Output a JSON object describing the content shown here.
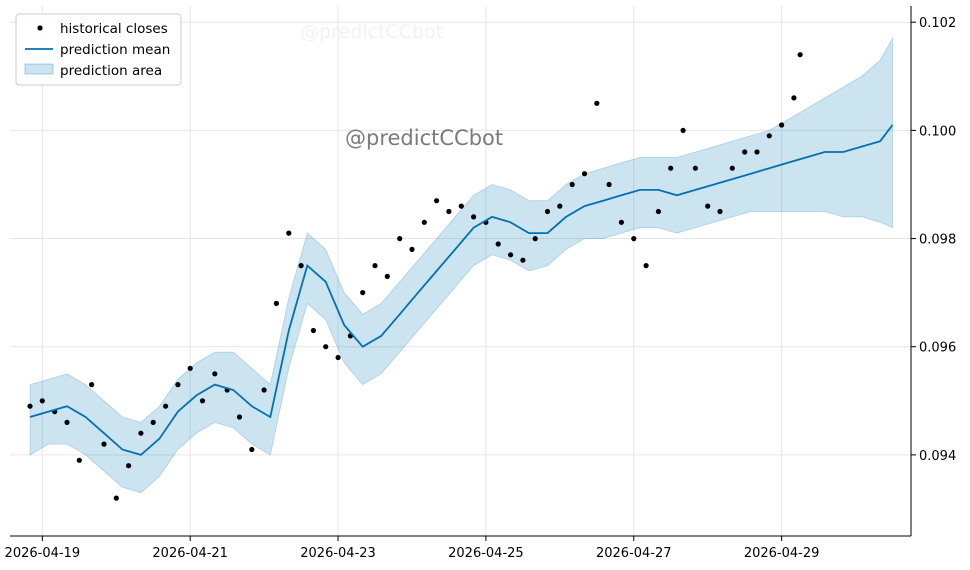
{
  "watermark": "@predictCCbot",
  "chart_data": {
    "type": "scatter+line+area",
    "x_ticks": [
      "2026-04-19",
      "2026-04-21",
      "2026-04-23",
      "2026-04-25",
      "2026-04-27",
      "2026-04-29"
    ],
    "y_ticks": [
      "0.094",
      "0.096",
      "0.098",
      "0.100",
      "0.102"
    ],
    "xlim": [
      "2026-04-18T13:30",
      "2026-04-30T18:00"
    ],
    "ylim": [
      0.0925,
      0.1023
    ],
    "grid": true,
    "legend": {
      "placement": "top-left",
      "entries": [
        "historical closes",
        "prediction mean",
        "prediction area"
      ]
    },
    "colors": {
      "historical": "#000000",
      "mean": "#0072B2",
      "area": "#0072B2"
    },
    "mean": {
      "t": [
        "2026-04-18T20:00",
        "2026-04-19T02:00",
        "2026-04-19T08:00",
        "2026-04-19T14:00",
        "2026-04-19T20:00",
        "2026-04-20T02:00",
        "2026-04-20T08:00",
        "2026-04-20T14:00",
        "2026-04-20T20:00",
        "2026-04-21T02:00",
        "2026-04-21T08:00",
        "2026-04-21T14:00",
        "2026-04-21T20:00",
        "2026-04-22T02:00",
        "2026-04-22T08:00",
        "2026-04-22T14:00",
        "2026-04-22T20:00",
        "2026-04-23T02:00",
        "2026-04-23T08:00",
        "2026-04-23T14:00",
        "2026-04-23T20:00",
        "2026-04-24T02:00",
        "2026-04-24T08:00",
        "2026-04-24T14:00",
        "2026-04-24T20:00",
        "2026-04-25T02:00",
        "2026-04-25T08:00",
        "2026-04-25T14:00",
        "2026-04-25T20:00",
        "2026-04-26T02:00",
        "2026-04-26T08:00",
        "2026-04-26T14:00",
        "2026-04-26T20:00",
        "2026-04-27T02:00",
        "2026-04-27T08:00",
        "2026-04-27T14:00",
        "2026-04-27T20:00",
        "2026-04-28T02:00",
        "2026-04-28T08:00",
        "2026-04-28T14:00",
        "2026-04-28T20:00",
        "2026-04-29T02:00",
        "2026-04-29T08:00",
        "2026-04-29T14:00",
        "2026-04-29T20:00",
        "2026-04-30T02:00",
        "2026-04-30T08:00",
        "2026-04-30T12:00"
      ],
      "y": [
        0.0947,
        0.0948,
        0.0949,
        0.0947,
        0.0944,
        0.0941,
        0.094,
        0.0943,
        0.0948,
        0.0951,
        0.0953,
        0.0952,
        0.0949,
        0.0947,
        0.0963,
        0.0975,
        0.0972,
        0.0964,
        0.096,
        0.0962,
        0.0966,
        0.097,
        0.0974,
        0.0978,
        0.0982,
        0.0984,
        0.0983,
        0.0981,
        0.0981,
        0.0984,
        0.0986,
        0.0987,
        0.0988,
        0.0989,
        0.0989,
        0.0988,
        0.0989,
        0.099,
        0.0991,
        0.0992,
        0.0993,
        0.0994,
        0.0995,
        0.0996,
        0.0996,
        0.0997,
        0.0998,
        0.1001
      ]
    },
    "area": {
      "lower": [
        0.094,
        0.0942,
        0.0942,
        0.094,
        0.0937,
        0.0934,
        0.0933,
        0.0936,
        0.0941,
        0.0944,
        0.0946,
        0.0945,
        0.0942,
        0.094,
        0.0956,
        0.0968,
        0.0965,
        0.0957,
        0.0953,
        0.0955,
        0.0959,
        0.0963,
        0.0967,
        0.0971,
        0.0975,
        0.0977,
        0.0976,
        0.0974,
        0.0975,
        0.0978,
        0.098,
        0.098,
        0.0981,
        0.0982,
        0.0982,
        0.0981,
        0.0982,
        0.0983,
        0.0984,
        0.0985,
        0.0985,
        0.0985,
        0.0985,
        0.0985,
        0.0984,
        0.0984,
        0.0983,
        0.0982
      ],
      "upper": [
        0.0953,
        0.0954,
        0.0955,
        0.0953,
        0.095,
        0.0947,
        0.0946,
        0.0949,
        0.0954,
        0.0957,
        0.0959,
        0.0959,
        0.0956,
        0.0953,
        0.0969,
        0.0981,
        0.0978,
        0.097,
        0.0966,
        0.0968,
        0.0972,
        0.0976,
        0.098,
        0.0984,
        0.0988,
        0.099,
        0.0989,
        0.0987,
        0.0987,
        0.099,
        0.0992,
        0.0993,
        0.0994,
        0.0995,
        0.0995,
        0.0995,
        0.0996,
        0.0997,
        0.0998,
        0.0999,
        0.1,
        0.1002,
        0.1004,
        0.1006,
        0.1008,
        0.101,
        0.1013,
        0.1017
      ]
    },
    "historical": {
      "t": [
        "2026-04-18T20:00",
        "2026-04-19T00:00",
        "2026-04-19T04:00",
        "2026-04-19T08:00",
        "2026-04-19T12:00",
        "2026-04-19T16:00",
        "2026-04-19T20:00",
        "2026-04-20T00:00",
        "2026-04-20T04:00",
        "2026-04-20T08:00",
        "2026-04-20T12:00",
        "2026-04-20T16:00",
        "2026-04-20T20:00",
        "2026-04-21T00:00",
        "2026-04-21T04:00",
        "2026-04-21T08:00",
        "2026-04-21T12:00",
        "2026-04-21T16:00",
        "2026-04-21T20:00",
        "2026-04-22T00:00",
        "2026-04-22T04:00",
        "2026-04-22T08:00",
        "2026-04-22T12:00",
        "2026-04-22T16:00",
        "2026-04-22T20:00",
        "2026-04-23T00:00",
        "2026-04-23T04:00",
        "2026-04-23T08:00",
        "2026-04-23T12:00",
        "2026-04-23T16:00",
        "2026-04-23T20:00",
        "2026-04-24T00:00",
        "2026-04-24T04:00",
        "2026-04-24T08:00",
        "2026-04-24T12:00",
        "2026-04-24T16:00",
        "2026-04-24T20:00",
        "2026-04-25T00:00",
        "2026-04-25T04:00",
        "2026-04-25T08:00",
        "2026-04-25T12:00",
        "2026-04-25T16:00",
        "2026-04-25T20:00",
        "2026-04-26T00:00",
        "2026-04-26T04:00",
        "2026-04-26T08:00",
        "2026-04-26T12:00",
        "2026-04-26T16:00",
        "2026-04-26T20:00",
        "2026-04-27T00:00",
        "2026-04-27T04:00",
        "2026-04-27T08:00",
        "2026-04-27T12:00",
        "2026-04-27T16:00",
        "2026-04-27T20:00",
        "2026-04-28T00:00",
        "2026-04-28T04:00",
        "2026-04-28T08:00",
        "2026-04-28T12:00",
        "2026-04-28T16:00",
        "2026-04-28T20:00",
        "2026-04-29T00:00",
        "2026-04-29T04:00",
        "2026-04-29T06:00"
      ],
      "y": [
        0.0949,
        0.095,
        0.0948,
        0.0946,
        0.0939,
        0.0953,
        0.0942,
        0.0932,
        0.0938,
        0.0944,
        0.0946,
        0.0949,
        0.0953,
        0.0956,
        0.095,
        0.0955,
        0.0952,
        0.0947,
        0.0941,
        0.0952,
        0.0968,
        0.0981,
        0.0975,
        0.0963,
        0.096,
        0.0958,
        0.0962,
        0.097,
        0.0975,
        0.0973,
        0.098,
        0.0978,
        0.0983,
        0.0987,
        0.0985,
        0.0986,
        0.0984,
        0.0983,
        0.0979,
        0.0977,
        0.0976,
        0.098,
        0.0985,
        0.0986,
        0.099,
        0.0992,
        0.1005,
        0.099,
        0.0983,
        0.098,
        0.0975,
        0.0985,
        0.0993,
        0.1,
        0.0993,
        0.0986,
        0.0985,
        0.0993,
        0.0996,
        0.0996,
        0.0999,
        0.1001,
        0.1006,
        0.1014
      ]
    }
  }
}
